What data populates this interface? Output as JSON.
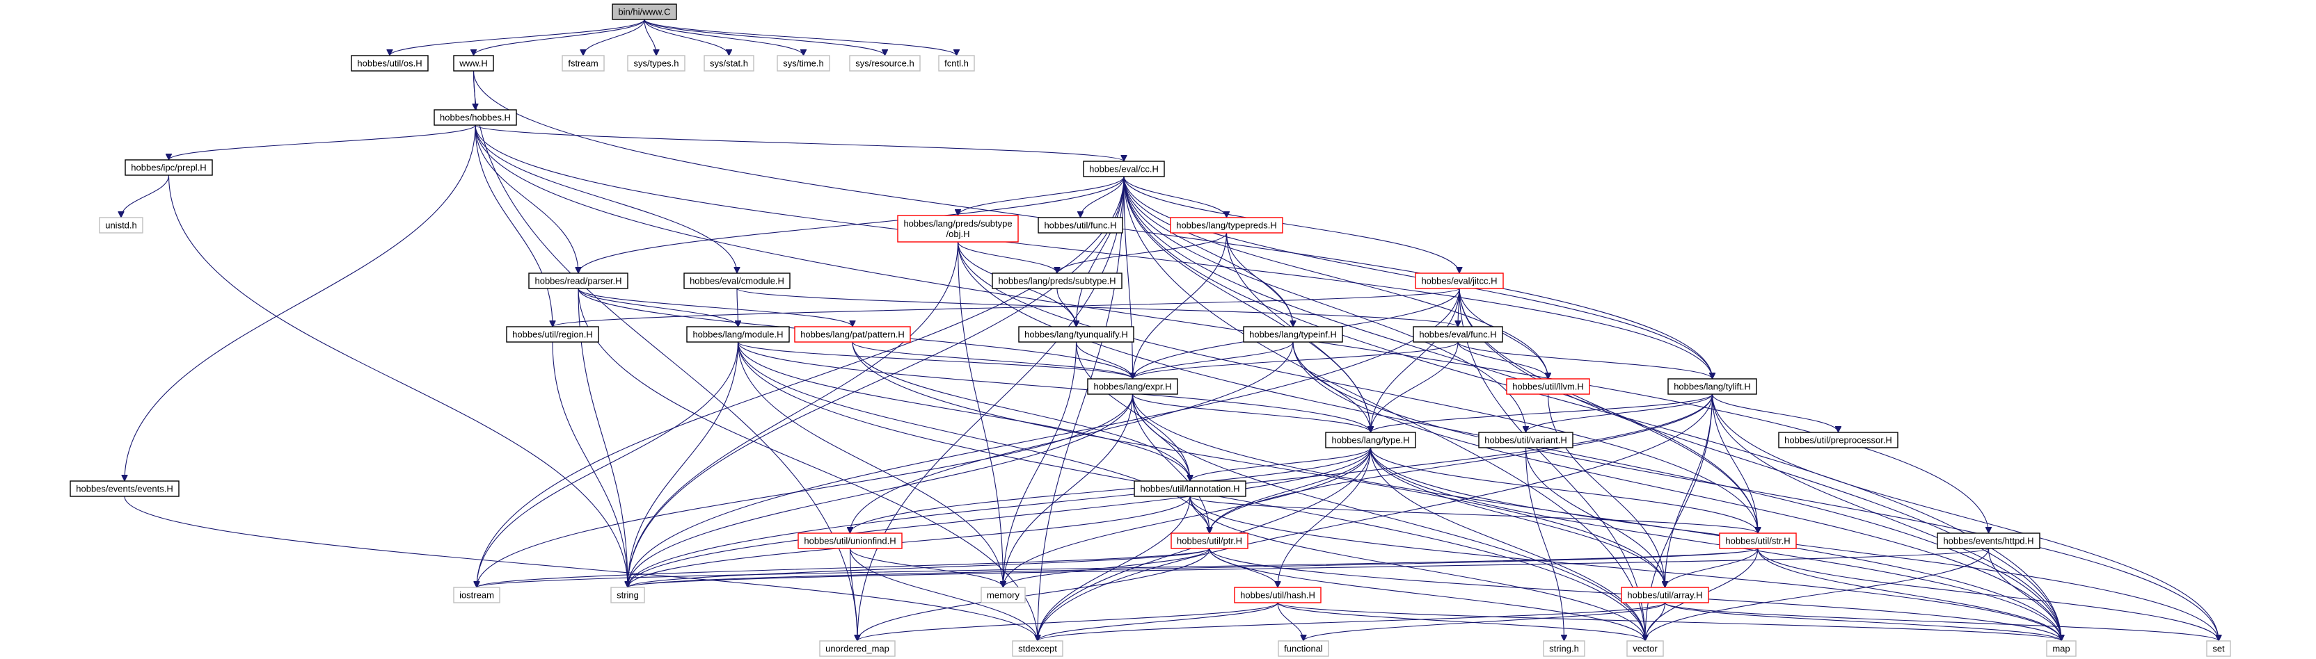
{
  "diagram": {
    "title": "bin/hi/www.C",
    "colors": {
      "root_fill": "#bfbfbf",
      "root_border": "#000000",
      "normal_border": "#000000",
      "truncated_border": "#ff0000",
      "system_border": "#bfbfbf",
      "edge": "#191970"
    },
    "nodes": [
      {
        "id": "root",
        "label": "bin/hi/www.C",
        "kind": "root"
      },
      {
        "id": "os",
        "label": "hobbes/util/os.H",
        "kind": "normal"
      },
      {
        "id": "www",
        "label": "www.H",
        "kind": "normal"
      },
      {
        "id": "fstream",
        "label": "fstream",
        "kind": "system"
      },
      {
        "id": "systypes",
        "label": "sys/types.h",
        "kind": "system"
      },
      {
        "id": "sysstat",
        "label": "sys/stat.h",
        "kind": "system"
      },
      {
        "id": "systime",
        "label": "sys/time.h",
        "kind": "system"
      },
      {
        "id": "sysres",
        "label": "sys/resource.h",
        "kind": "system"
      },
      {
        "id": "fcntl",
        "label": "fcntl.h",
        "kind": "system"
      },
      {
        "id": "hobbes",
        "label": "hobbes/hobbes.H",
        "kind": "normal"
      },
      {
        "id": "prepl",
        "label": "hobbes/ipc/prepl.H",
        "kind": "normal"
      },
      {
        "id": "evalcc",
        "label": "hobbes/eval/cc.H",
        "kind": "normal"
      },
      {
        "id": "unistd",
        "label": "unistd.h",
        "kind": "system"
      },
      {
        "id": "subtypeobj",
        "label": "hobbes/lang/preds/subtype/obj.H",
        "kind": "truncated"
      },
      {
        "id": "funcH",
        "label": "hobbes/util/func.H",
        "kind": "normal"
      },
      {
        "id": "typepreds",
        "label": "hobbes/lang/typepreds.H",
        "kind": "truncated"
      },
      {
        "id": "parser",
        "label": "hobbes/read/parser.H",
        "kind": "normal"
      },
      {
        "id": "cmodule",
        "label": "hobbes/eval/cmodule.H",
        "kind": "normal"
      },
      {
        "id": "subtypeH",
        "label": "hobbes/lang/preds/subtype.H",
        "kind": "normal"
      },
      {
        "id": "jitcc",
        "label": "hobbes/eval/jitcc.H",
        "kind": "truncated"
      },
      {
        "id": "region",
        "label": "hobbes/util/region.H",
        "kind": "normal"
      },
      {
        "id": "module",
        "label": "hobbes/lang/module.H",
        "kind": "normal"
      },
      {
        "id": "pattern",
        "label": "hobbes/lang/pat/pattern.H",
        "kind": "truncated"
      },
      {
        "id": "tyunq",
        "label": "hobbes/lang/tyunqualify.H",
        "kind": "normal"
      },
      {
        "id": "typeinf",
        "label": "hobbes/lang/typeinf.H",
        "kind": "normal"
      },
      {
        "id": "evalfunc",
        "label": "hobbes/eval/func.H",
        "kind": "normal"
      },
      {
        "id": "llvm",
        "label": "hobbes/util/llvm.H",
        "kind": "truncated"
      },
      {
        "id": "expr",
        "label": "hobbes/lang/expr.H",
        "kind": "normal"
      },
      {
        "id": "tylift",
        "label": "hobbes/lang/tylift.H",
        "kind": "normal"
      },
      {
        "id": "type",
        "label": "hobbes/lang/type.H",
        "kind": "normal"
      },
      {
        "id": "variant",
        "label": "hobbes/util/variant.H",
        "kind": "normal"
      },
      {
        "id": "preproc",
        "label": "hobbes/util/preprocessor.H",
        "kind": "normal"
      },
      {
        "id": "events",
        "label": "hobbes/events/events.H",
        "kind": "normal"
      },
      {
        "id": "lannot",
        "label": "hobbes/util/lannotation.H",
        "kind": "normal"
      },
      {
        "id": "unionfind",
        "label": "hobbes/util/unionfind.H",
        "kind": "truncated"
      },
      {
        "id": "ptr",
        "label": "hobbes/util/ptr.H",
        "kind": "truncated"
      },
      {
        "id": "str",
        "label": "hobbes/util/str.H",
        "kind": "truncated"
      },
      {
        "id": "httpd",
        "label": "hobbes/events/httpd.H",
        "kind": "normal"
      },
      {
        "id": "iostream",
        "label": "iostream",
        "kind": "system"
      },
      {
        "id": "string",
        "label": "string",
        "kind": "system"
      },
      {
        "id": "memory",
        "label": "memory",
        "kind": "system"
      },
      {
        "id": "hash",
        "label": "hobbes/util/hash.H",
        "kind": "truncated"
      },
      {
        "id": "array",
        "label": "hobbes/util/array.H",
        "kind": "truncated"
      },
      {
        "id": "unordered_map",
        "label": "unordered_map",
        "kind": "system"
      },
      {
        "id": "stdexcept",
        "label": "stdexcept",
        "kind": "system"
      },
      {
        "id": "functional",
        "label": "functional",
        "kind": "system"
      },
      {
        "id": "stringh",
        "label": "string.h",
        "kind": "system"
      },
      {
        "id": "vector",
        "label": "vector",
        "kind": "system"
      },
      {
        "id": "map",
        "label": "map",
        "kind": "system"
      },
      {
        "id": "set",
        "label": "set",
        "kind": "system"
      }
    ],
    "edges": [
      [
        "root",
        "os"
      ],
      [
        "root",
        "www"
      ],
      [
        "root",
        "fstream"
      ],
      [
        "root",
        "systypes"
      ],
      [
        "root",
        "sysstat"
      ],
      [
        "root",
        "systime"
      ],
      [
        "root",
        "sysres"
      ],
      [
        "root",
        "fcntl"
      ],
      [
        "www",
        "hobbes"
      ],
      [
        "www",
        "unordered_map"
      ],
      [
        "www",
        "tylift"
      ],
      [
        "hobbes",
        "prepl"
      ],
      [
        "hobbes",
        "evalcc"
      ],
      [
        "hobbes",
        "parser"
      ],
      [
        "hobbes",
        "cmodule"
      ],
      [
        "hobbes",
        "region"
      ],
      [
        "hobbes",
        "events"
      ],
      [
        "hobbes",
        "httpd"
      ],
      [
        "hobbes",
        "tylift"
      ],
      [
        "prepl",
        "unistd"
      ],
      [
        "prepl",
        "string"
      ],
      [
        "evalcc",
        "subtypeobj"
      ],
      [
        "evalcc",
        "funcH"
      ],
      [
        "evalcc",
        "typepreds"
      ],
      [
        "evalcc",
        "parser"
      ],
      [
        "evalcc",
        "jitcc"
      ],
      [
        "evalcc",
        "tyunq"
      ],
      [
        "evalcc",
        "typeinf"
      ],
      [
        "evalcc",
        "llvm"
      ],
      [
        "evalcc",
        "expr"
      ],
      [
        "evalcc",
        "tylift"
      ],
      [
        "evalcc",
        "type"
      ],
      [
        "evalcc",
        "variant"
      ],
      [
        "evalcc",
        "str"
      ],
      [
        "evalcc",
        "iostream"
      ],
      [
        "evalcc",
        "string"
      ],
      [
        "evalcc",
        "stdexcept"
      ],
      [
        "evalcc",
        "vector"
      ],
      [
        "evalcc",
        "map"
      ],
      [
        "evalcc",
        "unordered_map"
      ],
      [
        "subtypeobj",
        "subtypeH"
      ],
      [
        "subtypeobj",
        "tyunq"
      ],
      [
        "subtypeobj",
        "map"
      ],
      [
        "subtypeobj",
        "str"
      ],
      [
        "subtypeobj",
        "memory"
      ],
      [
        "subtypeobj",
        "string"
      ],
      [
        "typepreds",
        "subtypeH"
      ],
      [
        "typepreds",
        "typeinf"
      ],
      [
        "typepreds",
        "expr"
      ],
      [
        "typepreds",
        "type"
      ],
      [
        "parser",
        "module"
      ],
      [
        "parser",
        "pattern"
      ],
      [
        "parser",
        "expr"
      ],
      [
        "parser",
        "string"
      ],
      [
        "parser",
        "stdexcept"
      ],
      [
        "cmodule",
        "module"
      ],
      [
        "cmodule",
        "evalfunc"
      ],
      [
        "subtypeH",
        "tyunq"
      ],
      [
        "jitcc",
        "region"
      ],
      [
        "jitcc",
        "evalfunc"
      ],
      [
        "jitcc",
        "llvm"
      ],
      [
        "jitcc",
        "expr"
      ],
      [
        "jitcc",
        "type"
      ],
      [
        "jitcc",
        "string"
      ],
      [
        "jitcc",
        "vector"
      ],
      [
        "jitcc",
        "map"
      ],
      [
        "jitcc",
        "str"
      ],
      [
        "region",
        "string"
      ],
      [
        "module",
        "expr"
      ],
      [
        "module",
        "lannot"
      ],
      [
        "module",
        "type"
      ],
      [
        "module",
        "string"
      ],
      [
        "module",
        "iostream"
      ],
      [
        "module",
        "memory"
      ],
      [
        "module",
        "vector"
      ],
      [
        "module",
        "ptr"
      ],
      [
        "pattern",
        "expr"
      ],
      [
        "pattern",
        "lannot"
      ],
      [
        "pattern",
        "array"
      ],
      [
        "tyunq",
        "expr"
      ],
      [
        "tyunq",
        "lannot"
      ],
      [
        "tyunq",
        "memory"
      ],
      [
        "typeinf",
        "expr"
      ],
      [
        "typeinf",
        "type"
      ],
      [
        "typeinf",
        "unionfind"
      ],
      [
        "typeinf",
        "map"
      ],
      [
        "typeinf",
        "set"
      ],
      [
        "evalfunc",
        "tylift"
      ],
      [
        "evalfunc",
        "type"
      ],
      [
        "evalfunc",
        "llvm"
      ],
      [
        "evalfunc",
        "expr"
      ],
      [
        "llvm",
        "array"
      ],
      [
        "expr",
        "type"
      ],
      [
        "expr",
        "lannot"
      ],
      [
        "expr",
        "ptr"
      ],
      [
        "expr",
        "string"
      ],
      [
        "expr",
        "iostream"
      ],
      [
        "expr",
        "memory"
      ],
      [
        "expr",
        "vector"
      ],
      [
        "expr",
        "map"
      ],
      [
        "tylift",
        "type"
      ],
      [
        "tylift",
        "variant"
      ],
      [
        "tylift",
        "preproc"
      ],
      [
        "tylift",
        "str"
      ],
      [
        "tylift",
        "array"
      ],
      [
        "tylift",
        "ptr"
      ],
      [
        "tylift",
        "vector"
      ],
      [
        "tylift",
        "map"
      ],
      [
        "tylift",
        "set"
      ],
      [
        "tylift",
        "stdexcept"
      ],
      [
        "tylift",
        "string"
      ],
      [
        "type",
        "lannot"
      ],
      [
        "type",
        "ptr"
      ],
      [
        "type",
        "str"
      ],
      [
        "type",
        "array"
      ],
      [
        "type",
        "hash"
      ],
      [
        "type",
        "string"
      ],
      [
        "type",
        "memory"
      ],
      [
        "type",
        "vector"
      ],
      [
        "type",
        "map"
      ],
      [
        "type",
        "set"
      ],
      [
        "type",
        "stdexcept"
      ],
      [
        "type",
        "unionfind"
      ],
      [
        "variant",
        "stringh"
      ],
      [
        "variant",
        "array"
      ],
      [
        "events",
        "stdexcept"
      ],
      [
        "lannot",
        "str"
      ],
      [
        "lannot",
        "ptr"
      ],
      [
        "lannot",
        "string"
      ],
      [
        "lannot",
        "vector"
      ],
      [
        "lannot",
        "stdexcept"
      ],
      [
        "lannot",
        "map"
      ],
      [
        "unionfind",
        "memory"
      ],
      [
        "unionfind",
        "stdexcept"
      ],
      [
        "unionfind",
        "unordered_map"
      ],
      [
        "ptr",
        "memory"
      ],
      [
        "ptr",
        "hash"
      ],
      [
        "ptr",
        "string"
      ],
      [
        "ptr",
        "iostream"
      ],
      [
        "ptr",
        "vector"
      ],
      [
        "ptr",
        "map"
      ],
      [
        "ptr",
        "unordered_map"
      ],
      [
        "str",
        "array"
      ],
      [
        "str",
        "string"
      ],
      [
        "str",
        "vector"
      ],
      [
        "str",
        "map"
      ],
      [
        "str",
        "set"
      ],
      [
        "str",
        "iostream"
      ],
      [
        "httpd",
        "string"
      ],
      [
        "httpd",
        "vector"
      ],
      [
        "httpd",
        "map"
      ],
      [
        "hash",
        "functional"
      ],
      [
        "hash",
        "stdexcept"
      ],
      [
        "hash",
        "unordered_map"
      ],
      [
        "hash",
        "vector"
      ],
      [
        "hash",
        "map"
      ],
      [
        "array",
        "vector"
      ],
      [
        "array",
        "map"
      ],
      [
        "array",
        "set"
      ],
      [
        "array",
        "stdexcept"
      ],
      [
        "array",
        "functional"
      ]
    ]
  }
}
